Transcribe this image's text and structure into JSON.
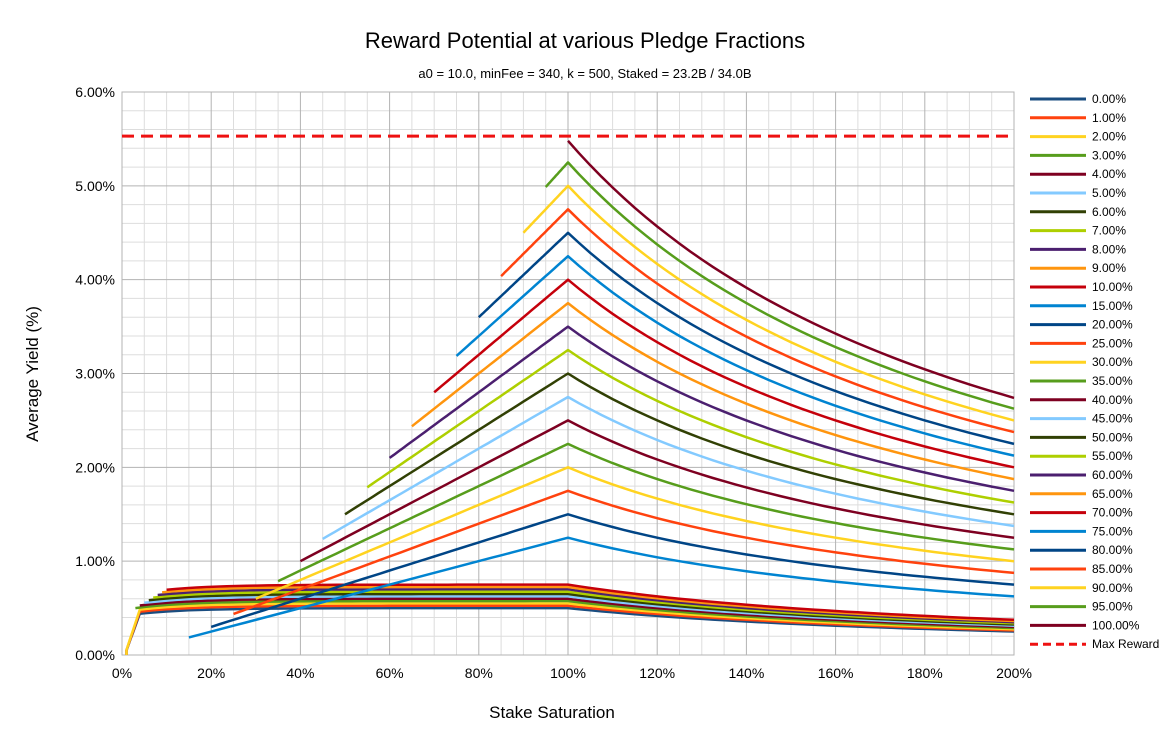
{
  "chart_data": {
    "type": "line",
    "title": "Reward Potential at various Pledge Fractions",
    "subtitle": "a0 = 10.0, minFee = 340, k = 500, Staked = 23.2B / 34.0B",
    "xlabel": "Stake Saturation",
    "ylabel": "Average Yield (%)",
    "xlim": [
      0,
      2
    ],
    "ylim": [
      0,
      0.06
    ],
    "x_ticks": [
      "0%",
      "20%",
      "40%",
      "60%",
      "80%",
      "100%",
      "120%",
      "140%",
      "160%",
      "180%",
      "200%"
    ],
    "y_ticks": [
      "0.00%",
      "1.00%",
      "2.00%",
      "3.00%",
      "4.00%",
      "5.00%",
      "6.00%"
    ],
    "grid": true,
    "legend_position": "right",
    "reference_line": {
      "name": "Max Reward",
      "y": 0.0553,
      "style": "dashed",
      "color": "#ee1111"
    },
    "series": [
      {
        "name": "0.00%",
        "pledge": 0.0,
        "peak_yield": 0.005,
        "color": "#1a4d80"
      },
      {
        "name": "1.00%",
        "pledge": 0.01,
        "peak_yield": 0.00525,
        "color": "#ff420e"
      },
      {
        "name": "2.00%",
        "pledge": 0.02,
        "peak_yield": 0.0055,
        "color": "#ffd320"
      },
      {
        "name": "3.00%",
        "pledge": 0.03,
        "peak_yield": 0.00575,
        "color": "#579d1c"
      },
      {
        "name": "4.00%",
        "pledge": 0.04,
        "peak_yield": 0.006,
        "color": "#7e0021"
      },
      {
        "name": "5.00%",
        "pledge": 0.05,
        "peak_yield": 0.00625,
        "color": "#83caff"
      },
      {
        "name": "6.00%",
        "pledge": 0.06,
        "peak_yield": 0.0065,
        "color": "#314004"
      },
      {
        "name": "7.00%",
        "pledge": 0.07,
        "peak_yield": 0.00675,
        "color": "#aecf00"
      },
      {
        "name": "8.00%",
        "pledge": 0.08,
        "peak_yield": 0.007,
        "color": "#4b1f6f"
      },
      {
        "name": "9.00%",
        "pledge": 0.09,
        "peak_yield": 0.00725,
        "color": "#ff950e"
      },
      {
        "name": "10.00%",
        "pledge": 0.1,
        "peak_yield": 0.0075,
        "color": "#c5000b"
      },
      {
        "name": "15.00%",
        "pledge": 0.15,
        "peak_yield": 0.0125,
        "color": "#0084d1"
      },
      {
        "name": "20.00%",
        "pledge": 0.2,
        "peak_yield": 0.015,
        "color": "#004586"
      },
      {
        "name": "25.00%",
        "pledge": 0.25,
        "peak_yield": 0.0175,
        "color": "#ff420e"
      },
      {
        "name": "30.00%",
        "pledge": 0.3,
        "peak_yield": 0.02,
        "color": "#ffd320"
      },
      {
        "name": "35.00%",
        "pledge": 0.35,
        "peak_yield": 0.0225,
        "color": "#579d1c"
      },
      {
        "name": "40.00%",
        "pledge": 0.4,
        "peak_yield": 0.025,
        "color": "#7e0021"
      },
      {
        "name": "45.00%",
        "pledge": 0.45,
        "peak_yield": 0.0275,
        "color": "#83caff"
      },
      {
        "name": "50.00%",
        "pledge": 0.5,
        "peak_yield": 0.03,
        "color": "#314004"
      },
      {
        "name": "55.00%",
        "pledge": 0.55,
        "peak_yield": 0.0325,
        "color": "#aecf00"
      },
      {
        "name": "60.00%",
        "pledge": 0.6,
        "peak_yield": 0.035,
        "color": "#4b1f6f"
      },
      {
        "name": "65.00%",
        "pledge": 0.65,
        "peak_yield": 0.0375,
        "color": "#ff950e"
      },
      {
        "name": "70.00%",
        "pledge": 0.7,
        "peak_yield": 0.04,
        "color": "#c5000b"
      },
      {
        "name": "75.00%",
        "pledge": 0.75,
        "peak_yield": 0.0425,
        "color": "#0084d1"
      },
      {
        "name": "80.00%",
        "pledge": 0.8,
        "peak_yield": 0.045,
        "color": "#004586"
      },
      {
        "name": "85.00%",
        "pledge": 0.85,
        "peak_yield": 0.0475,
        "color": "#ff420e"
      },
      {
        "name": "90.00%",
        "pledge": 0.9,
        "peak_yield": 0.05,
        "color": "#ffd320"
      },
      {
        "name": "95.00%",
        "pledge": 0.95,
        "peak_yield": 0.0525,
        "color": "#579d1c"
      },
      {
        "name": "100.00%",
        "pledge": 1.0,
        "peak_yield": 0.0548,
        "color": "#7e0021"
      }
    ]
  }
}
